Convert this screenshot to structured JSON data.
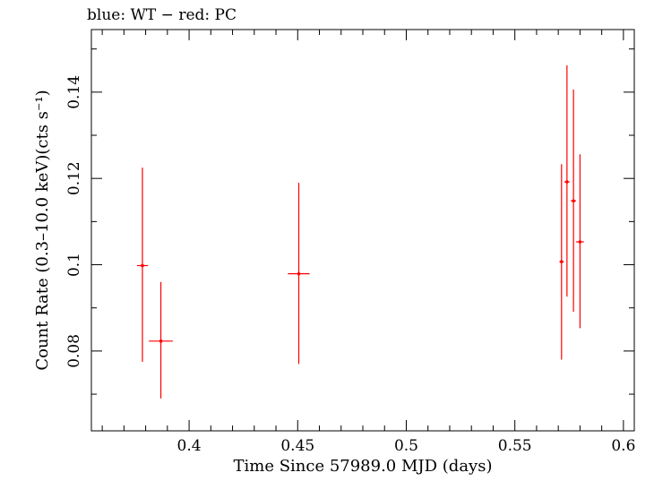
{
  "chart_data": {
    "type": "scatter",
    "title": "blue: WT − red: PC",
    "xlabel": "Time Since 57989.0 MJD (days)",
    "ylabel": "Count Rate (0.3–10.0 keV)(cts s⁻¹)",
    "xlim": [
      0.355,
      0.605
    ],
    "ylim": [
      0.0615,
      0.1545
    ],
    "xticks": [
      0.4,
      0.45,
      0.5,
      0.55,
      0.6
    ],
    "xtick_labels": [
      "0.4",
      "0.45",
      "0.5",
      "0.55",
      "0.6"
    ],
    "yticks": [
      0.08,
      0.1,
      0.12,
      0.14
    ],
    "ytick_labels": [
      "0.08",
      "0.1",
      "0.12",
      "0.14"
    ],
    "grid": false,
    "legend": "none",
    "series": [
      {
        "color": "#ff0000",
        "points": [
          {
            "x": 0.3785,
            "y": 0.0998,
            "xerr": 0.0025,
            "yerr_low": 0.0223,
            "yerr_high": 0.0227
          },
          {
            "x": 0.387,
            "y": 0.0823,
            "xerr": 0.0055,
            "yerr_low": 0.0133,
            "yerr_high": 0.0137
          },
          {
            "x": 0.4505,
            "y": 0.0979,
            "xerr": 0.005,
            "yerr_low": 0.0209,
            "yerr_high": 0.0211
          },
          {
            "x": 0.5715,
            "y": 0.1007,
            "xerr": 0.001,
            "yerr_low": 0.0227,
            "yerr_high": 0.0226
          },
          {
            "x": 0.574,
            "y": 0.1192,
            "xerr": 0.0012,
            "yerr_low": 0.0266,
            "yerr_high": 0.027
          },
          {
            "x": 0.577,
            "y": 0.1148,
            "xerr": 0.0012,
            "yerr_low": 0.0257,
            "yerr_high": 0.0258
          },
          {
            "x": 0.58,
            "y": 0.1053,
            "xerr": 0.0018,
            "yerr_low": 0.02,
            "yerr_high": 0.0203
          }
        ]
      }
    ]
  }
}
